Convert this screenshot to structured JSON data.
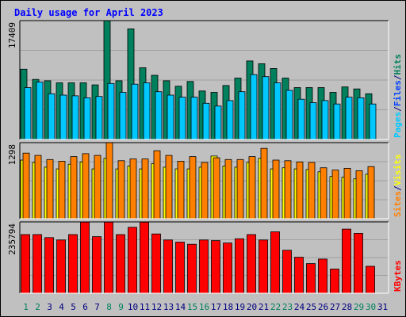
{
  "chart_data": {
    "type": "bar",
    "title": "Daily usage for April 2023",
    "colors": {
      "background": "#c0c0c0",
      "title": "#0000ff",
      "hits": "#00805c",
      "files": "#0040ff",
      "pages": "#00c8ff",
      "visits": "#ffff00",
      "sites": "#ff8000",
      "kbytes": "#ff0000",
      "weekend_day_label": "#00805c",
      "weekday_label": "#000080"
    },
    "days": [
      "1",
      "2",
      "3",
      "4",
      "5",
      "6",
      "7",
      "8",
      "9",
      "10",
      "11",
      "12",
      "13",
      "14",
      "15",
      "16",
      "17",
      "18",
      "19",
      "20",
      "21",
      "22",
      "23",
      "24",
      "25",
      "26",
      "27",
      "28",
      "29",
      "30",
      "31"
    ],
    "weekend_days": [
      "1",
      "2",
      "8",
      "9",
      "15",
      "16",
      "22",
      "23",
      "29",
      "30"
    ],
    "panels": [
      {
        "id": "traffic",
        "max_label": "17409",
        "ymax": 17409,
        "legend": [
          {
            "text": "Pages",
            "color": "#00c8ff"
          },
          {
            "text": "/",
            "color": "#000080"
          },
          {
            "text": "Files",
            "color": "#0040ff"
          },
          {
            "text": "/",
            "color": "#000080"
          },
          {
            "text": "Hits",
            "color": "#00805c"
          }
        ],
        "series": [
          {
            "name": "Hits",
            "values": [
              10300,
              8800,
              8600,
              8300,
              8300,
              8300,
              8000,
              17400,
              8600,
              16200,
              10500,
              9400,
              8600,
              7800,
              8500,
              7100,
              6900,
              7900,
              9000,
              11500,
              11100,
              10400,
              9000,
              7600,
              7600,
              7600,
              6900,
              7700,
              7400,
              6700,
              null
            ]
          },
          {
            "name": "Files",
            "values": [
              null,
              null,
              null,
              null,
              null,
              null,
              null,
              null,
              null,
              null,
              null,
              null,
              null,
              null,
              null,
              null,
              null,
              null,
              null,
              null,
              null,
              null,
              null,
              null,
              null,
              null,
              null,
              null,
              null,
              null,
              null
            ]
          },
          {
            "name": "Pages",
            "values": [
              7600,
              8400,
              6700,
              6500,
              6400,
              6100,
              6300,
              8200,
              6900,
              8100,
              8300,
              7000,
              6500,
              6200,
              6200,
              5300,
              4900,
              5700,
              7000,
              9500,
              9200,
              8300,
              7200,
              5900,
              5400,
              5700,
              5200,
              6200,
              6100,
              5200,
              null
            ]
          }
        ]
      },
      {
        "id": "visitors",
        "max_label": "1298",
        "ymax": 1298,
        "legend": [
          {
            "text": "Sites",
            "color": "#ff8000"
          },
          {
            "text": "/",
            "color": "#000080"
          },
          {
            "text": "Visits",
            "color": "#ffff00"
          }
        ],
        "series": [
          {
            "name": "Visits",
            "values": [
              1000,
              960,
              880,
              850,
              930,
              970,
              850,
              1030,
              850,
              900,
              850,
              940,
              880,
              850,
              850,
              880,
              1070,
              900,
              880,
              960,
              1030,
              850,
              870,
              850,
              840,
              800,
              720,
              710,
              680,
              760,
              null
            ]
          },
          {
            "name": "Sites",
            "values": [
              1120,
              1080,
              1010,
              980,
              1060,
              1110,
              1080,
              1298,
              990,
              1020,
              1020,
              1160,
              1080,
              980,
              1060,
              960,
              1040,
              1010,
              1010,
              1060,
              1200,
              1000,
              990,
              970,
              960,
              870,
              830,
              860,
              820,
              890,
              null
            ]
          }
        ]
      },
      {
        "id": "kbytes",
        "max_label": "235794",
        "ymax": 235794,
        "legend": [
          {
            "text": "KBytes",
            "color": "#ff0000"
          }
        ],
        "series": [
          {
            "name": "KBytes",
            "values": [
              194000,
              194000,
              184000,
              176000,
              194000,
              235000,
              187000,
              235000,
              194000,
              218000,
              235000,
              196000,
              176000,
              169000,
              162000,
              176000,
              174000,
              166000,
              180000,
              194000,
              176000,
              203000,
              142000,
              119000,
              98000,
              113000,
              80000,
              212000,
              198000,
              89000,
              null
            ]
          }
        ]
      }
    ]
  }
}
